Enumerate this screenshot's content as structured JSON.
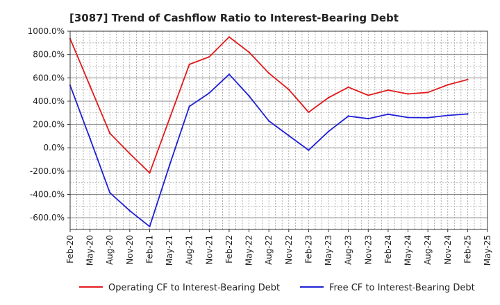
{
  "chart_data": {
    "type": "line",
    "title": "[3087]  Trend of Cashflow Ratio to Interest-Bearing Debt",
    "xlabel": "",
    "ylabel": "",
    "x": [
      "Feb-20",
      "May-20",
      "Aug-20",
      "Nov-20",
      "Feb-21",
      "May-21",
      "Aug-21",
      "Nov-21",
      "Feb-22",
      "May-22",
      "Aug-22",
      "Nov-22",
      "Feb-23",
      "May-23",
      "Aug-23",
      "Nov-23",
      "Feb-24",
      "May-24",
      "Aug-24",
      "Nov-24",
      "Feb-25",
      "May-25"
    ],
    "ylim": [
      -700,
      1000
    ],
    "yticks": [
      1000,
      800,
      600,
      400,
      200,
      0,
      -200,
      -400,
      -600
    ],
    "ytick_labels": [
      "1000.0%",
      "800.0%",
      "600.0%",
      "400.0%",
      "200.0%",
      "0.0%",
      "-200.0%",
      "-400.0%",
      "-600.0%"
    ],
    "grid": true,
    "legend_position": "bottom",
    "series": [
      {
        "name": "Operating CF to Interest-Bearing Debt",
        "color": "#e31a1c",
        "values": [
          935,
          530,
          125,
          -50,
          -215,
          250,
          715,
          780,
          950,
          820,
          640,
          500,
          305,
          430,
          520,
          450,
          495,
          462,
          475,
          540,
          585,
          null
        ]
      },
      {
        "name": "Free CF to Interest-Bearing Debt",
        "color": "#1f1fd6",
        "values": [
          535,
          80,
          -385,
          -540,
          -675,
          -150,
          355,
          470,
          630,
          445,
          230,
          105,
          -20,
          140,
          272,
          250,
          288,
          260,
          258,
          278,
          290,
          null
        ]
      }
    ]
  }
}
